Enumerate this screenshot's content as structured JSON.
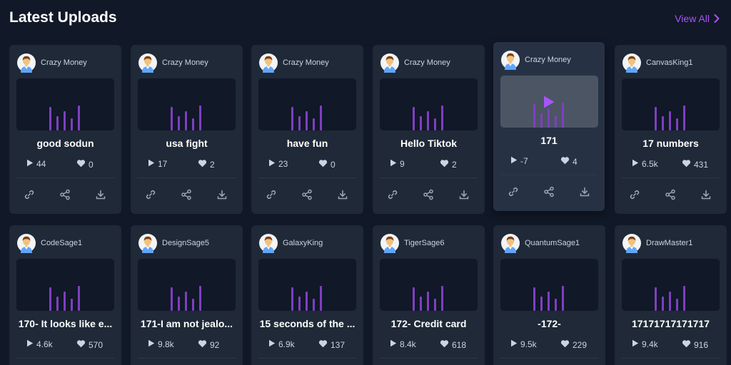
{
  "header": {
    "title": "Latest Uploads",
    "view_all_label": "View All"
  },
  "colors": {
    "accent": "#a855f7",
    "bar": "#7e3fc2",
    "card_bg": "#1f2937",
    "page_bg": "#111827"
  },
  "icons": {
    "views": "play-icon",
    "likes": "heart-icon",
    "copy_link": "link-icon",
    "share": "share-icon",
    "download": "download-icon",
    "view_all": "chevron-right-icon"
  },
  "cards": [
    {
      "uploader": "Crazy Money",
      "title": "good sodun",
      "views": "44",
      "likes": "0"
    },
    {
      "uploader": "Crazy Money",
      "title": "usa fight",
      "views": "17",
      "likes": "2"
    },
    {
      "uploader": "Crazy Money",
      "title": "have fun",
      "views": "23",
      "likes": "0"
    },
    {
      "uploader": "Crazy Money",
      "title": "Hello Tiktok",
      "views": "9",
      "likes": "2"
    },
    {
      "uploader": "Crazy Money",
      "title": "171",
      "views": "-7",
      "likes": "4"
    },
    {
      "uploader": "CanvasKing1",
      "title": "17 numbers",
      "views": "6.5k",
      "likes": "431"
    },
    {
      "uploader": "CodeSage1",
      "title": "170- It looks like e...",
      "views": "4.6k",
      "likes": "570"
    },
    {
      "uploader": "DesignSage5",
      "title": "171-I am not jealo...",
      "views": "9.8k",
      "likes": "92"
    },
    {
      "uploader": "GalaxyKing",
      "title": "15 seconds of the ...",
      "views": "6.9k",
      "likes": "137"
    },
    {
      "uploader": "TigerSage6",
      "title": "172- Credit card",
      "views": "8.4k",
      "likes": "618"
    },
    {
      "uploader": "QuantumSage1",
      "title": "-172-",
      "views": "9.5k",
      "likes": "229"
    },
    {
      "uploader": "DrawMaster1",
      "title": "17171717171717",
      "views": "9.4k",
      "likes": "916"
    }
  ]
}
